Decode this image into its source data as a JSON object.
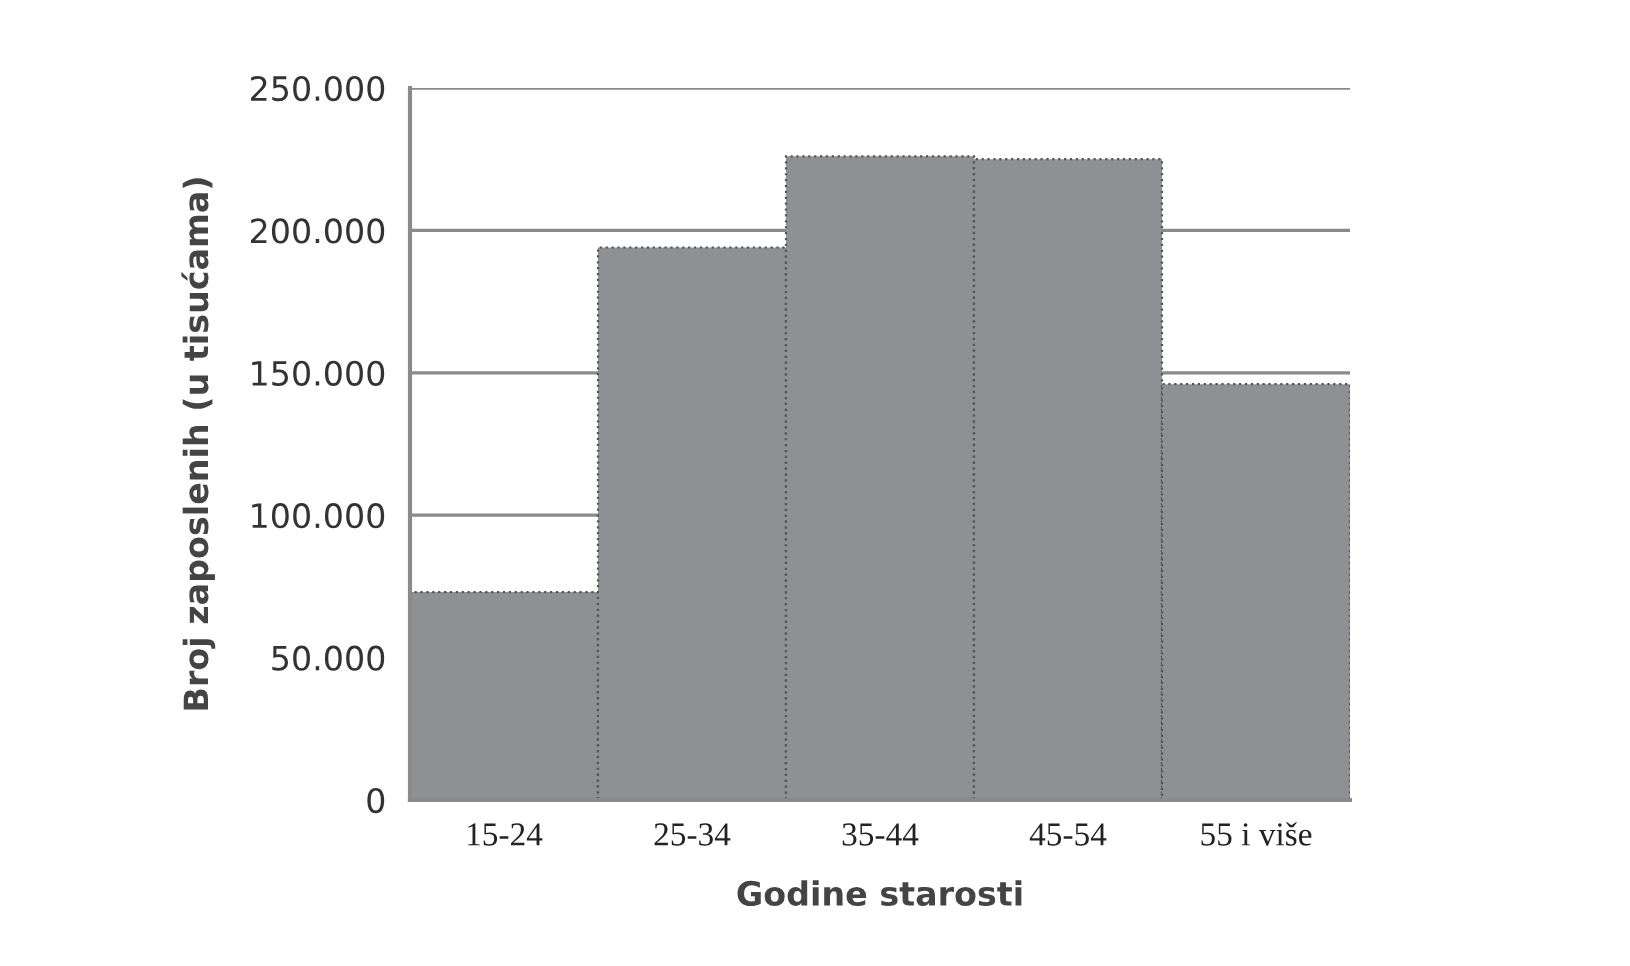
{
  "chart_data": {
    "type": "bar",
    "xlabel": "Godine starosti",
    "ylabel": "Broj zaposlenih (u tisućama)",
    "categories": [
      "15-24",
      "25-34",
      "35-44",
      "45-54",
      "55 i više"
    ],
    "values": [
      73000,
      194000,
      226000,
      225000,
      146000
    ],
    "color": "#8f9093",
    "ylim": [
      0,
      250000
    ],
    "yticks": [
      {
        "value": 0,
        "label": "0"
      },
      {
        "value": 50000,
        "label": "50.000"
      },
      {
        "value": 100000,
        "label": "100.000"
      },
      {
        "value": 150000,
        "label": "150.000"
      },
      {
        "value": 200000,
        "label": "200.000"
      },
      {
        "value": 250000,
        "label": "250.000"
      }
    ],
    "grid": "y",
    "legend": false
  }
}
